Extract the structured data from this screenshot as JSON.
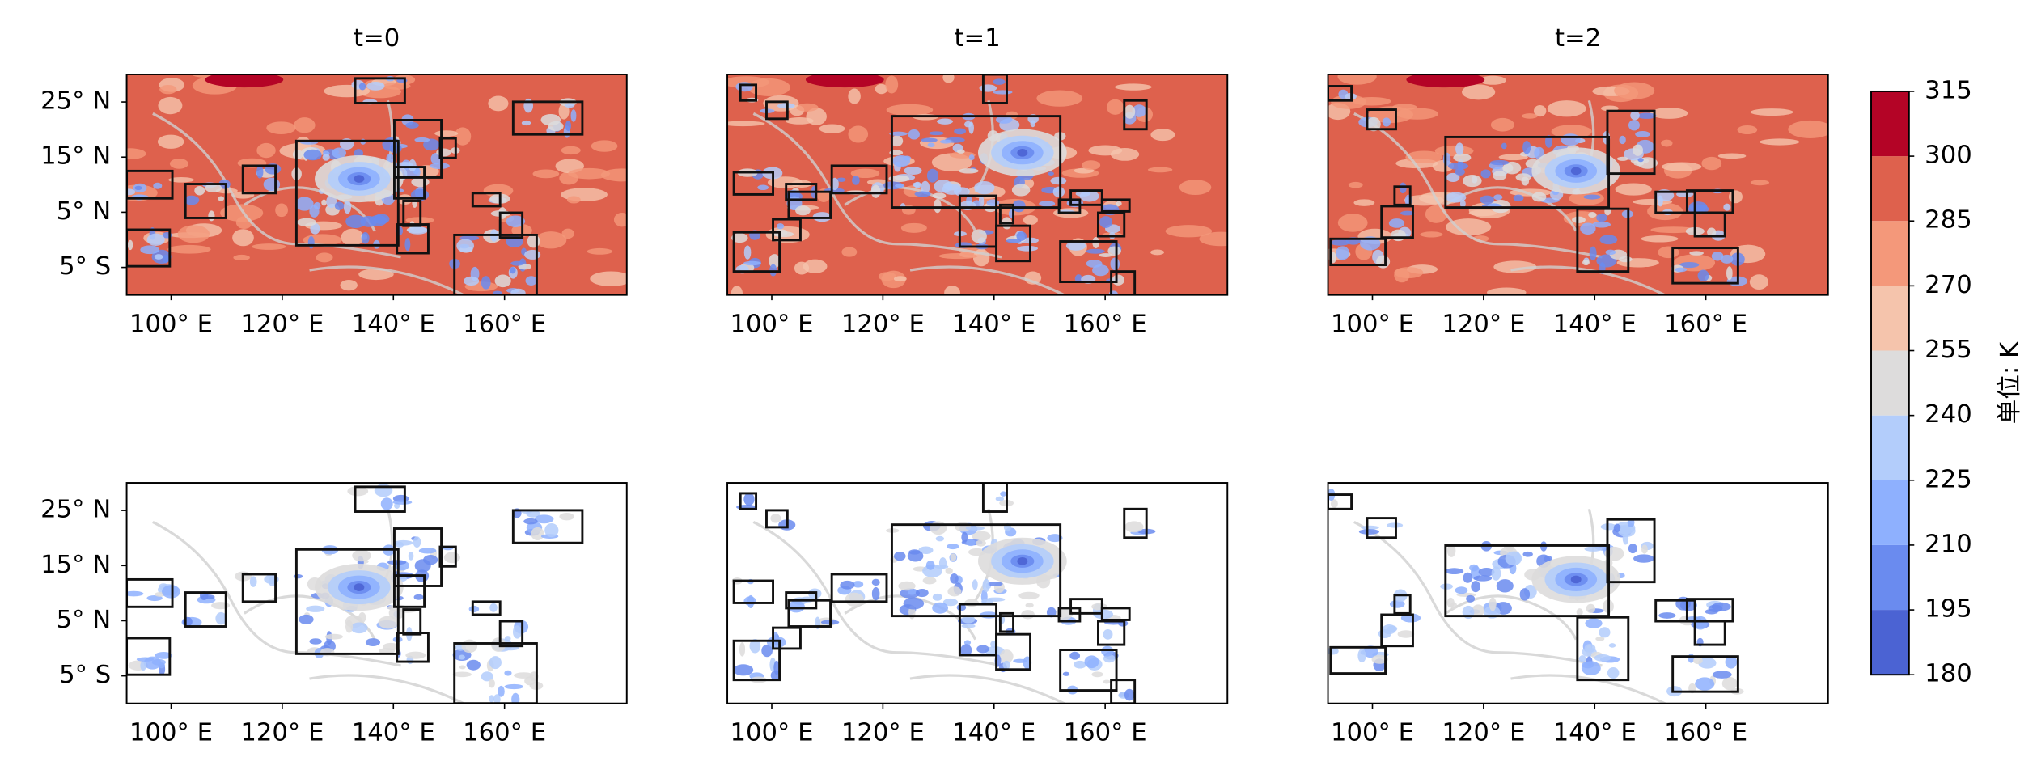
{
  "chart_data": {
    "type": "map",
    "titles": [
      "t=0",
      "t=1",
      "t=2"
    ],
    "xlim": [
      92,
      182
    ],
    "ylim": [
      -10,
      30
    ],
    "xticks": [
      {
        "value": 100,
        "label": "100° E"
      },
      {
        "value": 120,
        "label": "120° E"
      },
      {
        "value": 140,
        "label": "140° E"
      },
      {
        "value": 160,
        "label": "160° E"
      }
    ],
    "yticks": [
      {
        "value": 25,
        "label": "25° N"
      },
      {
        "value": 15,
        "label": "15° N"
      },
      {
        "value": 5,
        "label": "5° N"
      },
      {
        "value": -5,
        "label": "5° S"
      }
    ],
    "colorbar": {
      "label": "单位: K",
      "lim": [
        180,
        315
      ],
      "ticks": [
        180,
        195,
        210,
        225,
        240,
        255,
        270,
        285,
        300,
        315
      ],
      "colors": [
        "#4b63d3",
        "#6a8bef",
        "#8eb0fe",
        "#b3cdfb",
        "#dddcdc",
        "#f5c4ac",
        "#f4987a",
        "#de614d",
        "#b40426"
      ]
    }
  }
}
